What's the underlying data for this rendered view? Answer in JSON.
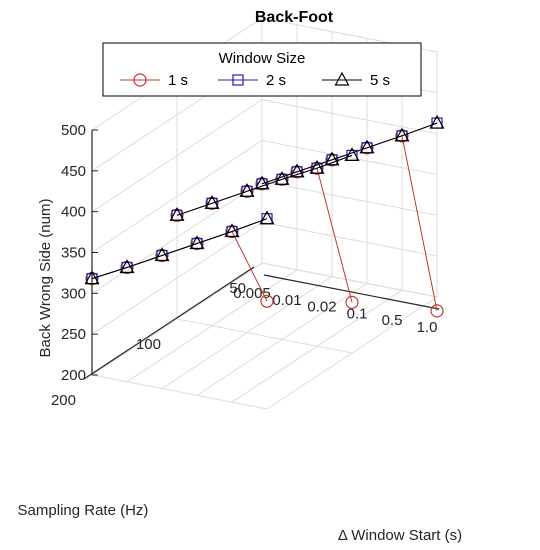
{
  "chart_data": {
    "type": "line3d",
    "title": "Back-Foot",
    "xlabel": "Δ Window Start (s)",
    "ylabel": "Sampling Rate (Hz)",
    "zlabel": "Back Wrong Side (num)",
    "x_ticks": [
      "0.005",
      "0.01",
      "0.02",
      "0.1",
      "0.5",
      "1.0"
    ],
    "y_ticks": [
      "50",
      "100",
      "200"
    ],
    "z_ticks": [
      "200",
      "250",
      "300",
      "350",
      "400",
      "450",
      "500"
    ],
    "zlim": [
      200,
      500
    ],
    "grid": true,
    "legend": {
      "title": "Window Size",
      "position": "top"
    },
    "series": [
      {
        "name": "1 s",
        "color": "#c0392b",
        "marker": "circle",
        "segments": [
          {
            "y": "200",
            "x": [
              "0.005",
              "0.01",
              "0.02",
              "0.1",
              "0.5",
              "1.0"
            ],
            "z": [
              318,
              340,
              363,
              386,
              409,
              332
            ]
          },
          {
            "y": "100",
            "x": [
              "0.005",
              "0.01",
              "0.02",
              "0.1",
              "0.5",
              "1.0"
            ],
            "z": [
              327,
              350,
              373,
              396,
              418,
              262
            ]
          },
          {
            "y": "50",
            "x": [
              "0.005",
              "0.01",
              "0.02",
              "0.1",
              "0.5",
              "1.0"
            ],
            "z": [
              297,
              320,
              343,
              366,
              389,
              183
            ]
          }
        ]
      },
      {
        "name": "2 s",
        "color": "#1f1fb4",
        "marker": "square",
        "segments": [
          {
            "y": "200",
            "x": [
              "0.005",
              "0.01",
              "0.02",
              "0.1",
              "0.5",
              "1.0"
            ],
            "z": [
              318,
              340,
              363,
              386,
              409,
              433
            ]
          },
          {
            "y": "100",
            "x": [
              "0.005",
              "0.01",
              "0.02",
              "0.1",
              "0.5",
              "1.0"
            ],
            "z": [
              327,
              350,
              373,
              396,
              418,
              442
            ]
          },
          {
            "y": "50",
            "x": [
              "0.005",
              "0.01",
              "0.02",
              "0.1",
              "0.5",
              "1.0"
            ],
            "z": [
              297,
              320,
              343,
              366,
              389,
              413
            ]
          }
        ]
      },
      {
        "name": "5 s",
        "color": "#000000",
        "marker": "triangle",
        "segments": [
          {
            "y": "200",
            "x": [
              "0.005",
              "0.01",
              "0.02",
              "0.1",
              "0.5",
              "1.0"
            ],
            "z": [
              318,
              340,
              363,
              386,
              409,
              433
            ]
          },
          {
            "y": "100",
            "x": [
              "0.005",
              "0.01",
              "0.02",
              "0.1",
              "0.5",
              "1.0"
            ],
            "z": [
              327,
              350,
              373,
              396,
              418,
              442
            ]
          },
          {
            "y": "50",
            "x": [
              "0.005",
              "0.01",
              "0.02",
              "0.1",
              "0.5",
              "1.0"
            ],
            "z": [
              297,
              320,
              343,
              366,
              389,
              413
            ]
          }
        ]
      }
    ]
  }
}
